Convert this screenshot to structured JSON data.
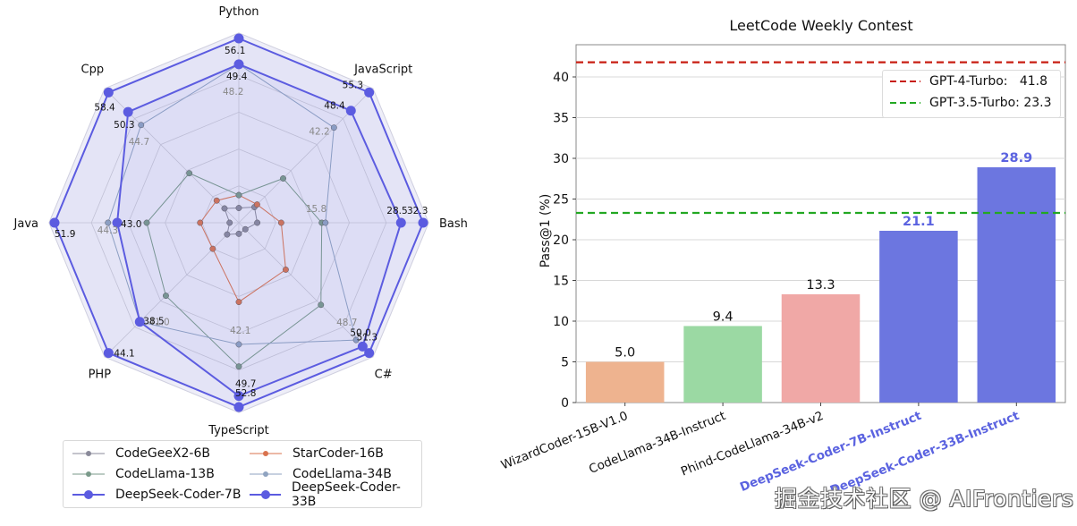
{
  "chart_data": [
    {
      "type": "radar",
      "title": "",
      "axes": [
        "Python",
        "JavaScript",
        "Bash",
        "C#",
        "TypeScript",
        "PHP",
        "Java",
        "Cpp"
      ],
      "scale": "per-axis normalized (outer ring = axis maximum)",
      "series": [
        {
          "name": "CodeGeeX2-6B",
          "color": "#8a8a9a",
          "style": "small",
          "normalized": [
            0.08,
            0.12,
            0.1,
            0.05,
            0.06,
            0.09,
            0.05,
            0.11
          ],
          "labels": [
            null,
            null,
            null,
            null,
            null,
            null,
            null,
            null
          ]
        },
        {
          "name": "StarCoder-16B",
          "color": "#d9734e",
          "style": "small",
          "normalized": [
            0.15,
            0.14,
            0.23,
            0.36,
            0.43,
            0.2,
            0.21,
            0.17
          ],
          "labels": [
            null,
            null,
            null,
            null,
            null,
            null,
            null,
            null
          ]
        },
        {
          "name": "CodeLlama-13B",
          "color": "#7a9a8a",
          "style": "small",
          "normalized": [
            0.15,
            0.34,
            0.45,
            0.63,
            0.78,
            0.56,
            0.5,
            0.38
          ],
          "labels": [
            null,
            null,
            null,
            null,
            null,
            null,
            null,
            null
          ]
        },
        {
          "name": "CodeLlama-34B",
          "color": "#8fa3c0",
          "style": "small",
          "normalized": [
            0.86,
            0.73,
            0.47,
            0.9,
            0.66,
            0.76,
            0.71,
            0.75
          ],
          "labels": [
            "48.2",
            "42.2",
            "15.8",
            "48.7",
            "42.1",
            "41.0",
            "44.3",
            "44.7"
          ]
        },
        {
          "name": "DeepSeek-Coder-7B",
          "color": "#5b5be0",
          "style": "large",
          "normalized": [
            0.86,
            0.86,
            0.88,
            0.95,
            0.94,
            0.76,
            0.66,
            0.85
          ],
          "labels": [
            "49.4",
            "48.4",
            "28.5",
            "50.0",
            "49.7",
            "38.5",
            "43.0",
            "50.3"
          ]
        },
        {
          "name": "DeepSeek-Coder-33B",
          "color": "#5b5be0",
          "style": "large",
          "normalized": [
            1,
            1,
            1,
            1,
            1,
            1,
            1,
            1
          ],
          "labels": [
            "56.1",
            "55.3",
            "32.3",
            "51.3",
            "52.8",
            "44.1",
            "51.9",
            "58.4"
          ]
        }
      ],
      "values": {
        "CodeLlama-34B": [
          48.2,
          42.2,
          15.8,
          48.7,
          42.1,
          41.0,
          44.3,
          44.7
        ],
        "DeepSeek-Coder-7B": [
          49.4,
          48.4,
          28.5,
          50.0,
          49.7,
          38.5,
          43.0,
          50.3
        ],
        "DeepSeek-Coder-33B": [
          56.1,
          55.3,
          32.3,
          51.3,
          52.8,
          44.1,
          51.9,
          58.4
        ]
      },
      "legend": {
        "placement": "bottom",
        "columns": 2,
        "entries": [
          "CodeGeeX2-6B",
          "StarCoder-16B",
          "CodeLlama-13B",
          "CodeLlama-34B",
          "DeepSeek-Coder-7B",
          "DeepSeek-Coder-33B"
        ]
      },
      "grid": true,
      "rings": 5
    },
    {
      "type": "bar",
      "title": "LeetCode Weekly Contest",
      "xlabel": "",
      "ylabel": "Pass@1 (%)",
      "ylim": [
        0,
        44
      ],
      "yticks": [
        0,
        5,
        10,
        15,
        20,
        25,
        30,
        35,
        40
      ],
      "grid": true,
      "categories": [
        "WizardCoder-15B-V1.0",
        "CodeLlama-34B-Instruct",
        "Phind-CodeLlama-34B-v2",
        "DeepSeek-Coder-7B-Instruct",
        "DeepSeek-Coder-33B-Instruct"
      ],
      "values": [
        5.0,
        9.4,
        13.3,
        21.1,
        28.9
      ],
      "bar_colors": [
        "#eeb38f",
        "#9bd9a3",
        "#f0a8a6",
        "#6c76e0",
        "#6c76e0"
      ],
      "label_colors": [
        "#111111",
        "#111111",
        "#111111",
        "#5b63e0",
        "#5b63e0"
      ],
      "data_labels": [
        "5.0",
        "9.4",
        "13.3",
        "21.1",
        "28.9"
      ],
      "reference_lines": [
        {
          "name": "GPT-4-Turbo",
          "value": 41.8,
          "color": "#c81e12",
          "label": "GPT-4-Turbo:   41.8"
        },
        {
          "name": "GPT-3.5-Turbo",
          "value": 23.3,
          "color": "#22a822",
          "label": "GPT-3.5-Turbo: 23.3"
        }
      ],
      "legend": {
        "placement": "top-right"
      }
    }
  ],
  "watermark": "掘金技术社区 @ AIFrontiers"
}
